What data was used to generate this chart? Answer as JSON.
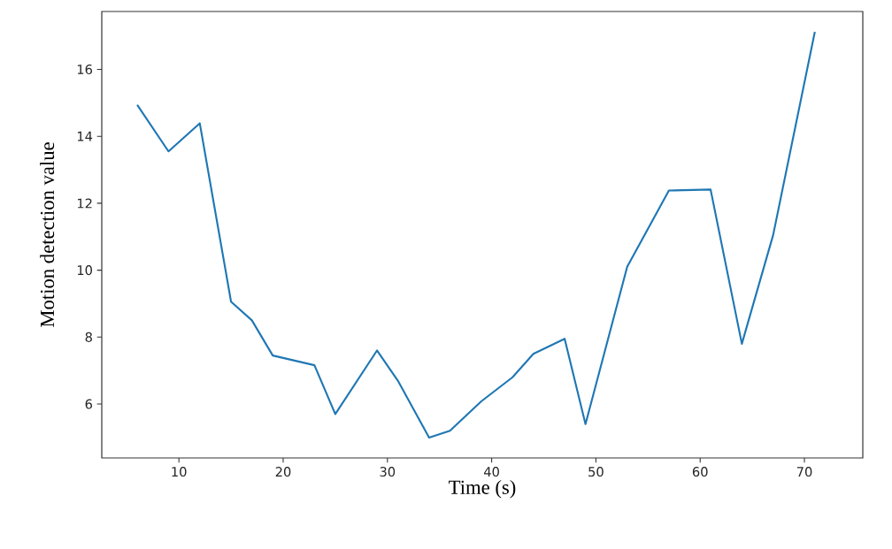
{
  "chart_data": {
    "type": "line",
    "xlabel": "Time (s)",
    "ylabel": "Motion detection value",
    "x": [
      6,
      9,
      12,
      15,
      17,
      19,
      23,
      25,
      29,
      31,
      34,
      36,
      39,
      42,
      44,
      47,
      49,
      53,
      57,
      61,
      64,
      67,
      71
    ],
    "values": [
      14.94,
      13.55,
      14.39,
      9.06,
      8.5,
      7.45,
      7.16,
      5.7,
      7.6,
      6.7,
      5.0,
      5.2,
      6.08,
      6.8,
      7.5,
      7.95,
      5.4,
      10.1,
      12.38,
      12.41,
      7.8,
      11.05,
      17.12
    ],
    "color": "#1f77b4",
    "xlim": [
      2.6,
      75.6
    ],
    "ylim": [
      4.39,
      17.73
    ],
    "xticks": [
      10,
      20,
      30,
      40,
      50,
      60,
      70
    ],
    "yticks": [
      6,
      8,
      10,
      12,
      14,
      16
    ]
  }
}
